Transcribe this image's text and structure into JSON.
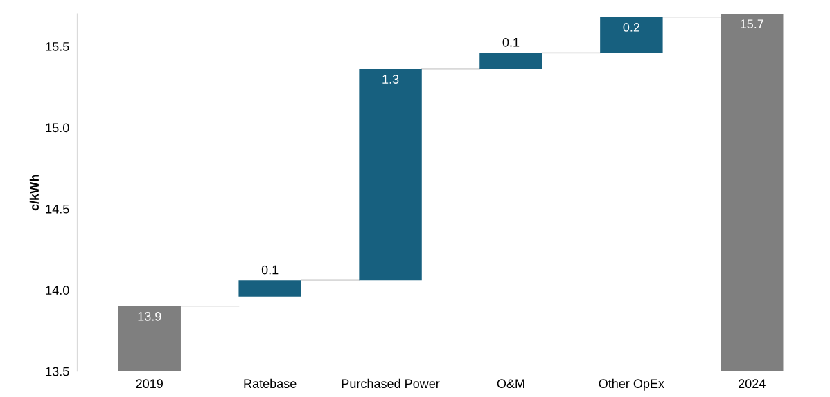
{
  "chart_data": {
    "type": "bar",
    "ylabel": "c/kWh",
    "categories": [
      "2019",
      "Ratebase",
      "Purchased Power",
      "O&M",
      "Other OpEx",
      "2024"
    ],
    "values": [
      13.9,
      0.1,
      1.3,
      0.1,
      0.22,
      15.7
    ],
    "base": [
      null,
      13.96,
      14.06,
      15.36,
      15.46,
      null
    ],
    "colors": [
      "#7f7f7f",
      "#17607f",
      "#17607f",
      "#17607f",
      "#17607f",
      "#7f7f7f"
    ],
    "value_labels": [
      "13.9",
      "0.1",
      "1.3",
      "0.1",
      "0.2",
      "15.7"
    ],
    "ylim": [
      13.5,
      15.7
    ],
    "yticks": [
      {
        "value": 13.5,
        "label": "13.5"
      },
      {
        "value": 14.0,
        "label": "14.0"
      },
      {
        "value": 14.5,
        "label": "14.5"
      },
      {
        "value": 15.0,
        "label": "15.0"
      },
      {
        "value": 15.5,
        "label": "15.5"
      }
    ],
    "grid": false,
    "legend": false
  }
}
